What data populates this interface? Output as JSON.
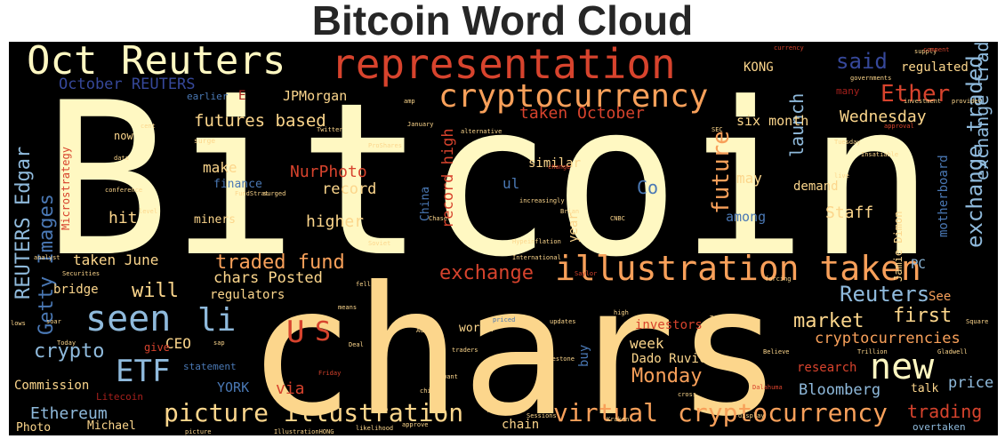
{
  "title": "Bitcoin Word Cloud",
  "colors": {
    "cream": "#fff8c2",
    "light": "#ffefa8",
    "gold": "#fcd68c",
    "orange": "#f8a05a",
    "red": "#d7432d",
    "darkred": "#a5201c",
    "blue": "#8fbadc",
    "steel": "#4a78b4",
    "navy": "#36489a"
  },
  "words": [
    {
      "text": "Bitcoin",
      "color": "cream"
    },
    {
      "text": "chars",
      "color": "gold"
    },
    {
      "text": "representation",
      "color": "red"
    },
    {
      "text": "Oct Reuters",
      "color": "cream"
    },
    {
      "text": "cryptocurrency",
      "color": "orange"
    },
    {
      "text": "illustration taken",
      "color": "orange"
    },
    {
      "text": "seen",
      "color": "blue"
    },
    {
      "text": "li",
      "color": "blue"
    },
    {
      "text": "new",
      "color": "cream"
    },
    {
      "text": "ETF",
      "color": "blue"
    },
    {
      "text": "U",
      "color": "red"
    },
    {
      "text": "S",
      "color": "red"
    },
    {
      "text": "virtual",
      "color": "orange"
    },
    {
      "text": "cryptocurrency",
      "color": "orange"
    },
    {
      "text": "picture illustration",
      "color": "gold"
    },
    {
      "text": "October REUTERS",
      "color": "navy"
    },
    {
      "text": "said",
      "color": "navy"
    },
    {
      "text": "regulated",
      "color": "gold"
    },
    {
      "text": "KONG",
      "color": "gold"
    },
    {
      "text": "launch",
      "color": "blue"
    },
    {
      "text": "Ether",
      "color": "red"
    },
    {
      "text": "exchange traded",
      "color": "blue"
    },
    {
      "text": "taken October",
      "color": "red"
    },
    {
      "text": "Wednesday",
      "color": "gold"
    },
    {
      "text": "JPMorgan",
      "color": "gold"
    },
    {
      "text": "futures based",
      "color": "gold"
    },
    {
      "text": "six month",
      "color": "gold"
    },
    {
      "text": "motherboard",
      "color": "steel"
    },
    {
      "text": "REUTERS Edgar",
      "color": "blue"
    },
    {
      "text": "Getty Images",
      "color": "steel"
    },
    {
      "text": "Microstrategy",
      "color": "red"
    },
    {
      "text": "make",
      "color": "gold"
    },
    {
      "text": "NurPhoto",
      "color": "red"
    },
    {
      "text": "record",
      "color": "gold"
    },
    {
      "text": "finance",
      "color": "steel"
    },
    {
      "text": "hit",
      "color": "gold"
    },
    {
      "text": "miners",
      "color": "gold"
    },
    {
      "text": "higher",
      "color": "gold"
    },
    {
      "text": "record high",
      "color": "red"
    },
    {
      "text": "China",
      "color": "steel"
    },
    {
      "text": "year",
      "color": "gold"
    },
    {
      "text": "future",
      "color": "orange"
    },
    {
      "text": "may",
      "color": "gold"
    },
    {
      "text": "demand",
      "color": "gold"
    },
    {
      "text": "among",
      "color": "steel"
    },
    {
      "text": "Staff",
      "color": "gold"
    },
    {
      "text": "Jamie Dimon",
      "color": "gold"
    },
    {
      "text": "PC",
      "color": "blue"
    },
    {
      "text": "exchange traded",
      "color": "blue"
    },
    {
      "text": "Co",
      "color": "steel"
    },
    {
      "text": "ul",
      "color": "steel"
    },
    {
      "text": "taken June",
      "color": "gold"
    },
    {
      "text": "traded fund",
      "color": "orange"
    },
    {
      "text": "chars Posted",
      "color": "gold"
    },
    {
      "text": "will",
      "color": "gold"
    },
    {
      "text": "regulators",
      "color": "gold"
    },
    {
      "text": "bridge",
      "color": "gold"
    },
    {
      "text": "exchange",
      "color": "red"
    },
    {
      "text": "Reuters",
      "color": "blue"
    },
    {
      "text": "See",
      "color": "orange"
    },
    {
      "text": "market",
      "color": "gold"
    },
    {
      "text": "first",
      "color": "gold"
    },
    {
      "text": "cryptocurrencies",
      "color": "orange"
    },
    {
      "text": "crypto",
      "color": "blue"
    },
    {
      "text": "CEO",
      "color": "gold"
    },
    {
      "text": "give",
      "color": "red"
    },
    {
      "text": "via",
      "color": "red"
    },
    {
      "text": "week",
      "color": "gold"
    },
    {
      "text": "Dado Ruvic",
      "color": "gold"
    },
    {
      "text": "Monday",
      "color": "orange"
    },
    {
      "text": "investors",
      "color": "red"
    },
    {
      "text": "buy",
      "color": "steel"
    },
    {
      "text": "worth",
      "color": "gold"
    },
    {
      "text": "statement",
      "color": "steel"
    },
    {
      "text": "YORK",
      "color": "steel"
    },
    {
      "text": "research",
      "color": "red"
    },
    {
      "text": "Bloomberg",
      "color": "blue"
    },
    {
      "text": "talk",
      "color": "gold"
    },
    {
      "text": "price",
      "color": "blue"
    },
    {
      "text": "Commission",
      "color": "gold"
    },
    {
      "text": "Litecoin",
      "color": "darkred"
    },
    {
      "text": "Ethereum",
      "color": "blue"
    },
    {
      "text": "Michael",
      "color": "gold"
    },
    {
      "text": "Photo",
      "color": "gold"
    },
    {
      "text": "chain",
      "color": "gold"
    },
    {
      "text": "trading",
      "color": "red"
    },
    {
      "text": "overtaken",
      "color": "blue"
    },
    {
      "text": "earlier",
      "color": "steel"
    },
    {
      "text": "E",
      "color": "darkred"
    },
    {
      "text": "now",
      "color": "gold"
    },
    {
      "text": "similar",
      "color": "gold"
    },
    {
      "text": "many",
      "color": "darkred"
    },
    {
      "text": "surge",
      "color": "gold"
    },
    {
      "text": "Twitter",
      "color": "gold"
    },
    {
      "text": "January",
      "color": "gold"
    },
    {
      "text": "ProShares",
      "color": "gold"
    },
    {
      "text": "alternative",
      "color": "gold"
    },
    {
      "text": "conference",
      "color": "gold"
    },
    {
      "text": "FundStrat",
      "color": "gold"
    },
    {
      "text": "Securities",
      "color": "gold"
    },
    {
      "text": "analyst",
      "color": "gold"
    },
    {
      "text": "International",
      "color": "gold"
    },
    {
      "text": "Hypeinflation",
      "color": "gold"
    },
    {
      "text": "milestone",
      "color": "gold"
    },
    {
      "text": "Believe",
      "color": "gold"
    },
    {
      "text": "Trillion",
      "color": "gold"
    },
    {
      "text": "Gladwell",
      "color": "gold"
    },
    {
      "text": "Square",
      "color": "gold"
    },
    {
      "text": "display",
      "color": "gold"
    },
    {
      "text": "approve",
      "color": "gold"
    },
    {
      "text": "picture",
      "color": "gold"
    },
    {
      "text": "Mexico",
      "color": "gold"
    },
    {
      "text": "Sessions",
      "color": "gold"
    },
    {
      "text": "Tuesday",
      "color": "gold"
    },
    {
      "text": "Insatiable",
      "color": "gold"
    },
    {
      "text": "approval",
      "color": "red"
    },
    {
      "text": "governments",
      "color": "gold"
    },
    {
      "text": "investment",
      "color": "gold"
    },
    {
      "text": "provider",
      "color": "gold"
    },
    {
      "text": "supply",
      "color": "gold"
    },
    {
      "text": "currency",
      "color": "red"
    },
    {
      "text": "comment",
      "color": "red"
    },
    {
      "text": "Saylor",
      "color": "red"
    },
    {
      "text": "forcing",
      "color": "gold"
    },
    {
      "text": "increasingly",
      "color": "gold"
    },
    {
      "text": "updates",
      "color": "gold"
    },
    {
      "text": "traders",
      "color": "gold"
    },
    {
      "text": "Friday",
      "color": "red"
    },
    {
      "text": "Dalahuma",
      "color": "red"
    },
    {
      "text": "high",
      "color": "gold"
    },
    {
      "text": "Kraken",
      "color": "gold"
    },
    {
      "text": "chief",
      "color": "gold"
    },
    {
      "text": "cross",
      "color": "gold"
    },
    {
      "text": "Chase",
      "color": "gold"
    },
    {
      "text": "Brian",
      "color": "gold"
    },
    {
      "text": "amp",
      "color": "gold"
    },
    {
      "text": "cent",
      "color": "gold"
    },
    {
      "text": "level",
      "color": "gold"
    },
    {
      "text": "fell",
      "color": "gold"
    },
    {
      "text": "soar",
      "color": "gold"
    },
    {
      "text": "data",
      "color": "gold"
    },
    {
      "text": "sap",
      "color": "gold"
    },
    {
      "text": "Adds",
      "color": "gold"
    },
    {
      "text": "Take",
      "color": "gold"
    },
    {
      "text": "live",
      "color": "gold"
    },
    {
      "text": "want",
      "color": "gold"
    },
    {
      "text": "priced",
      "color": "steel"
    },
    {
      "text": "Deal",
      "color": "gold"
    },
    {
      "text": "means",
      "color": "gold"
    },
    {
      "text": "change",
      "color": "red"
    },
    {
      "text": "likelihood",
      "color": "gold"
    },
    {
      "text": "IllustrationHONG",
      "color": "gold"
    },
    {
      "text": "Soviet",
      "color": "gold"
    },
    {
      "text": "surged",
      "color": "gold"
    },
    {
      "text": "lows",
      "color": "gold"
    },
    {
      "text": "Today",
      "color": "gold"
    },
    {
      "text": "CNBC",
      "color": "gold"
    },
    {
      "text": "SEC",
      "color": "gold"
    }
  ]
}
